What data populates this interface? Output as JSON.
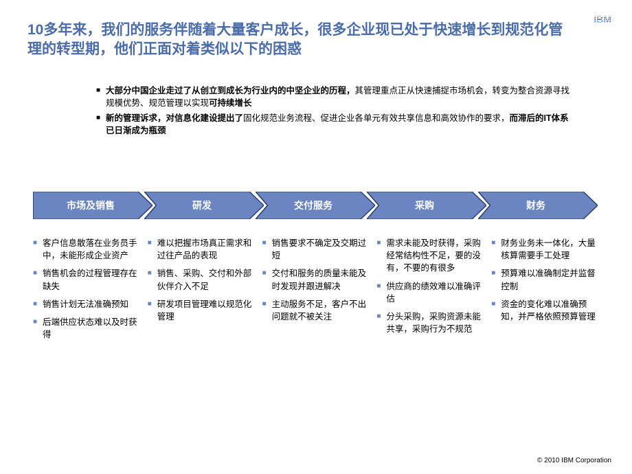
{
  "logo_text": "IBM",
  "title": "10多年来，我们的服务伴随着大量客户成长，很多企业现已处于快速增长到规范化管理的转型期，他们正面对着类似以下的困惑",
  "intro": [
    {
      "parts": [
        {
          "b": true,
          "t": "大部分中国企业走过了从创立到成长为行业内的中坚企业的历程，"
        },
        {
          "b": false,
          "t": "其管理重点正从快速捕捉市场机会，转变为整合资源寻找规模优势、规范管理以实现"
        },
        {
          "b": true,
          "t": "可持续增长"
        }
      ]
    },
    {
      "parts": [
        {
          "b": true,
          "t": "新的管理诉求，对信息化建设提出了"
        },
        {
          "b": false,
          "t": "固化规范业务流程、促进企业各单元有效共享信息和高效协作的要求，"
        },
        {
          "b": true,
          "t": "而滞后的IT体系已日渐成为瓶颈"
        }
      ]
    }
  ],
  "chevron": {
    "fill": "#6b85c2",
    "stroke": "#2a3a66",
    "text_color": "#ffffff"
  },
  "columns": [
    {
      "label": "市场及销售",
      "items": [
        "客户信息散落在业务员手中，未能形成企业资产",
        "销售机会的过程管理存在缺失",
        "销售计划无法准确预知",
        "后端供应状态难以及时获得"
      ]
    },
    {
      "label": "研发",
      "items": [
        "难以把握市场真正需求和过往产品的表现",
        "销售、采购、交付和外部伙伴介入不足",
        "研发项目管理难以规范化管理"
      ]
    },
    {
      "label": "交付服务",
      "items": [
        "销售要求不确定及交期过短",
        "交付和服务的质量未能及时发现并跟进解决",
        "主动服务不足，客户不出问题就不被关注"
      ]
    },
    {
      "label": "采购",
      "items": [
        "需求未能及时获得，采购经常结构性不足，要的没有，不要的有很多",
        "供应商的绩效难以准确评估",
        "分头采购，采购资源未能共享，采购行为不规范"
      ]
    },
    {
      "label": "财务",
      "items": [
        "财务业务未一体化，大量核算需要手工处理",
        "预算难以准确制定并监督控制",
        "资金的变化难以准确预知，并严格依照预算管理"
      ]
    }
  ],
  "footer": "© 2010 IBM Corporation"
}
